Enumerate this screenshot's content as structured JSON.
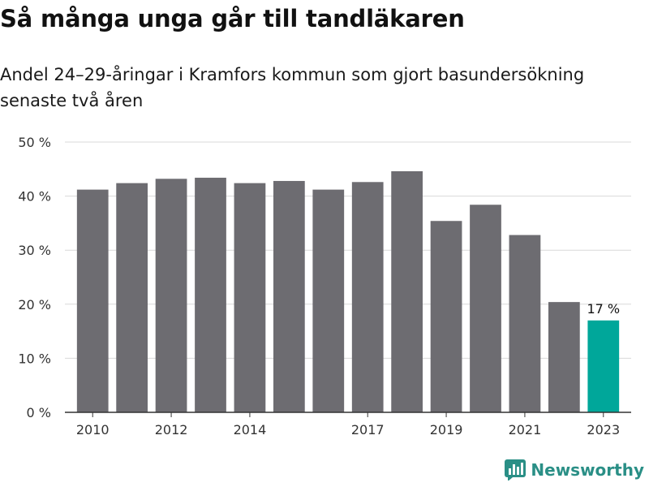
{
  "header": {
    "title": "Så många unga går till tandläkaren",
    "subtitle": "Andel 24–29-åringar i Kramfors kommun som gjort basundersökning senaste två åren"
  },
  "brand": {
    "name": "Newsworthy"
  },
  "colors": {
    "bar": "#6d6c71",
    "highlight": "#00a79a",
    "grid": "#d9d9d9",
    "axis": "#333333"
  },
  "chart_data": {
    "type": "bar",
    "categories": [
      "2010",
      "2011",
      "2012",
      "2013",
      "2014",
      "2015",
      "2016",
      "2017",
      "2018",
      "2019",
      "2020",
      "2021",
      "2022",
      "2023"
    ],
    "values": [
      41.2,
      42.4,
      43.2,
      43.4,
      42.4,
      42.8,
      41.2,
      42.6,
      44.6,
      35.4,
      38.4,
      32.8,
      20.4,
      17
    ],
    "x_tick_labels": [
      "2010",
      "2012",
      "2014",
      "2017",
      "2019",
      "2021",
      "2023"
    ],
    "y_tick_labels": [
      "0 %",
      "10 %",
      "20 %",
      "30 %",
      "40 %",
      "50 %"
    ],
    "ylim": [
      0,
      50
    ],
    "highlight_index": 13,
    "highlight_label": "17 %",
    "grid": true
  }
}
